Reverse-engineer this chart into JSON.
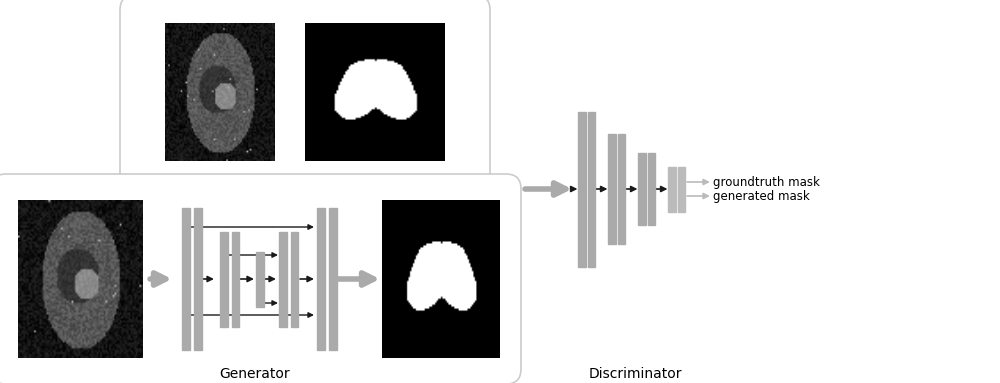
{
  "bg_color": "#ffffff",
  "gray_bar_color": "#aaaaaa",
  "light_gray_color": "#bbbbbb",
  "arrow_dark": "#444444",
  "arrow_black": "#1a1a1a",
  "box_edge_color": "#cccccc",
  "label_generator": "Generator",
  "label_discriminator": "Discriminator",
  "label_groundtruth": "groundtruth mask",
  "label_generated": "generated mask",
  "font_size": 10,
  "fig_w": 10.0,
  "fig_h": 3.83,
  "xlim": [
    0,
    10
  ],
  "ylim": [
    0,
    3.83
  ]
}
